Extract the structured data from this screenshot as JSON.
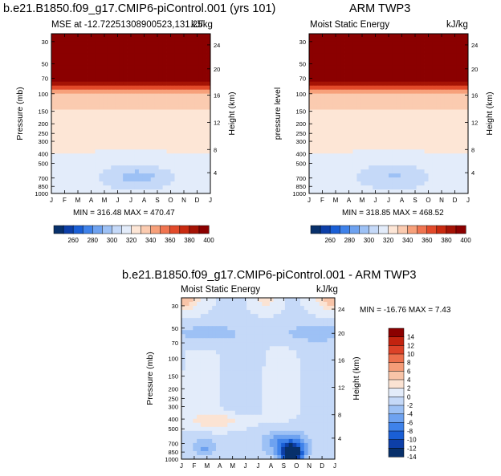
{
  "colors": {
    "bg": "#ffffff",
    "mse_scale": [
      "#08306b",
      "#0d3fa8",
      "#1a5fd6",
      "#3f82ea",
      "#6ea2f0",
      "#9dc1f5",
      "#c5d9f8",
      "#e3ecfa",
      "#fde6d6",
      "#fbcbb0",
      "#f7a07a",
      "#f07450",
      "#e24a2a",
      "#c92a10",
      "#a51305",
      "#8b0000"
    ],
    "diff_scale": [
      "#08306b",
      "#0d3fa8",
      "#1a5fd6",
      "#3f82ea",
      "#6ea2f0",
      "#9dc1f5",
      "#c5d9f8",
      "#e3ecfa",
      "#fbe3d3",
      "#f8c4a8",
      "#f59c78",
      "#ec6f4c",
      "#dc4228",
      "#c2230f",
      "#8b0000"
    ]
  },
  "chart_data": [
    {
      "type": "heatmap",
      "panel": "model",
      "figure_title": "b.e21.B1850.f09_g17.CMIP6-piControl.001 (yrs 101)",
      "title": "MSE at -12.72251308900523,131.25",
      "units": "kJ/kg",
      "xlabel": "",
      "ylabel": "Pressure (mb)",
      "y2label": "Height (km)",
      "x_ticks": [
        "J",
        "F",
        "M",
        "A",
        "M",
        "J",
        "J",
        "A",
        "S",
        "O",
        "N",
        "D",
        "J"
      ],
      "y_ticks": [
        "30",
        "50",
        "70",
        "100",
        "150",
        "200",
        "250",
        "300",
        "400",
        "500",
        "700",
        "850",
        "1000"
      ],
      "y2_ticks": [
        "24",
        "20",
        "16",
        "12",
        "8",
        "4"
      ],
      "stats": "MIN = 316.48 MAX = 470.47",
      "colorbar_ticks": [
        "260",
        "280",
        "300",
        "320",
        "340",
        "360",
        "380",
        "400"
      ],
      "value_range": [
        316.48,
        470.47
      ]
    },
    {
      "type": "heatmap",
      "panel": "observations",
      "figure_title": "ARM TWP3",
      "title": "Moist Static Energy",
      "units": "kJ/kg",
      "xlabel": "",
      "ylabel": "pressure level",
      "y2label": "Height (km)",
      "x_ticks": [
        "J",
        "F",
        "M",
        "A",
        "M",
        "J",
        "J",
        "A",
        "S",
        "O",
        "N",
        "D",
        "J"
      ],
      "y_ticks": [
        "30",
        "50",
        "70",
        "100",
        "150",
        "200",
        "250",
        "300",
        "400",
        "500",
        "700",
        "850",
        "1000"
      ],
      "y2_ticks": [
        "24",
        "20",
        "16",
        "12",
        "8",
        "4"
      ],
      "stats": "MIN = 318.85 MAX = 468.52",
      "colorbar_ticks": [
        "260",
        "280",
        "300",
        "320",
        "340",
        "360",
        "380",
        "400"
      ],
      "value_range": [
        318.85,
        468.52
      ]
    },
    {
      "type": "heatmap",
      "panel": "difference",
      "figure_title": "b.e21.B1850.f09_g17.CMIP6-piControl.001 - ARM TWP3",
      "title": "Moist Static Energy",
      "units": "kJ/kg",
      "xlabel": "",
      "ylabel": "Pressure (mb)",
      "y2label": "Height (km)",
      "x_ticks": [
        "J",
        "F",
        "M",
        "A",
        "M",
        "J",
        "J",
        "A",
        "S",
        "O",
        "N",
        "D",
        "J"
      ],
      "y_ticks": [
        "30",
        "50",
        "70",
        "100",
        "150",
        "200",
        "250",
        "300",
        "400",
        "500",
        "700",
        "850",
        "1000"
      ],
      "y2_ticks": [
        "24",
        "20",
        "16",
        "12",
        "8",
        "4"
      ],
      "stats": "MIN = -16.76 MAX =   7.43",
      "colorbar_ticks": [
        "14",
        "12",
        "10",
        "8",
        "6",
        "4",
        "2",
        "0",
        "-2",
        "-4",
        "-6",
        "-8",
        "-10",
        "-12",
        "-14"
      ],
      "value_range": [
        -16.76,
        7.43
      ]
    }
  ]
}
